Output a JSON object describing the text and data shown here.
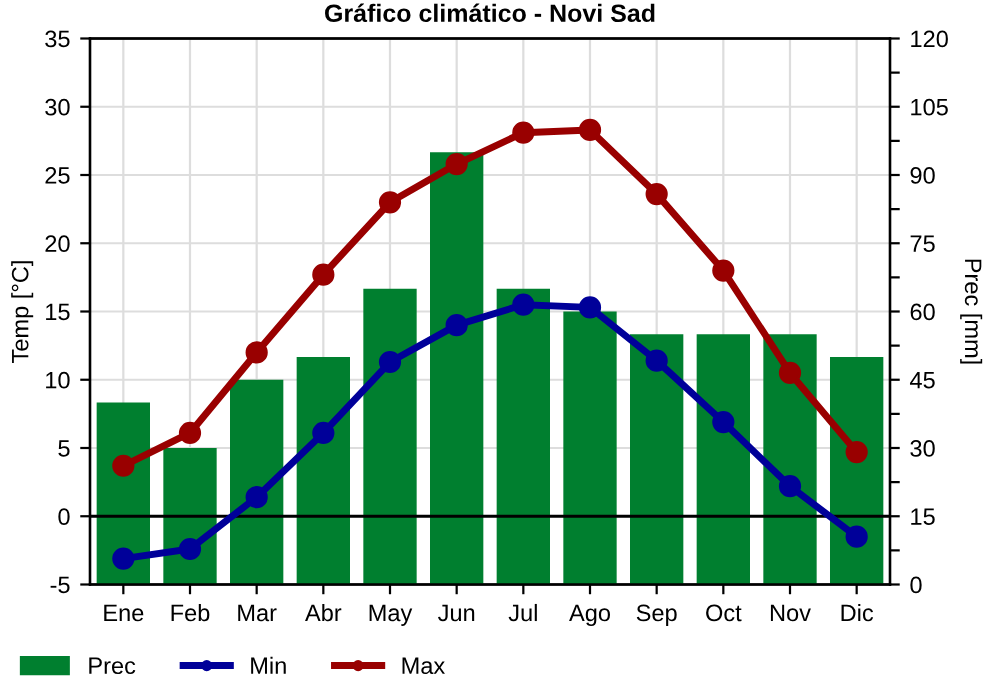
{
  "chart_data": {
    "type": "bar",
    "title": "Gráfico climático - Novi Sad",
    "ylabel": "Temp [°C]",
    "y2label": "Prec [mm]",
    "categories": [
      "Ene",
      "Feb",
      "Mar",
      "Abr",
      "May",
      "Jun",
      "Jul",
      "Ago",
      "Sep",
      "Oct",
      "Nov",
      "Dic"
    ],
    "series": [
      {
        "name": "Prec",
        "axis": "y2",
        "color": "#007f2f",
        "values": [
          40,
          30,
          45,
          50,
          65,
          95,
          65,
          60,
          55,
          55,
          55,
          50
        ]
      },
      {
        "name": "Min",
        "type": "line",
        "axis": "y",
        "color": "#000099",
        "marker": "circle",
        "values": [
          -3.1,
          -2.4,
          1.4,
          6.1,
          11.3,
          14.0,
          15.5,
          15.3,
          11.4,
          6.9,
          2.2,
          -1.5
        ]
      },
      {
        "name": "Max",
        "type": "line",
        "axis": "y",
        "color": "#990000",
        "marker": "circle",
        "values": [
          3.7,
          6.1,
          12.0,
          17.7,
          23.0,
          25.8,
          28.1,
          28.3,
          23.6,
          18.0,
          10.5,
          4.7
        ]
      }
    ],
    "ylim": [
      -5,
      35
    ],
    "yticks": [
      -5,
      0,
      5,
      10,
      15,
      20,
      25,
      30,
      35
    ],
    "y2lim": [
      0,
      120
    ],
    "y2ticks": [
      0,
      {
        "value": 7.5,
        "label": null
      },
      15,
      {
        "value": 22.5,
        "label": null
      },
      30,
      {
        "value": 37.5,
        "label": null
      },
      45,
      {
        "value": 52.5,
        "label": null
      },
      60,
      {
        "value": 67.5,
        "label": null
      },
      75,
      {
        "value": 82.5,
        "label": null
      },
      90,
      {
        "value": 97.5,
        "label": null
      },
      105,
      {
        "value": 112.5,
        "label": null
      },
      120
    ],
    "ref_lines": [
      {
        "axis": "y",
        "value": 0,
        "color": "#000000"
      }
    ],
    "grid": true,
    "legend": "bottom left"
  }
}
